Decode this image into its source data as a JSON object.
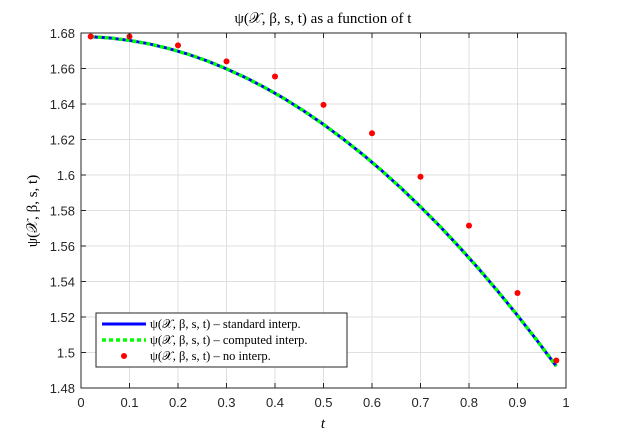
{
  "chart_data": {
    "type": "line",
    "title": "ψ(𝒳, β, s, t) as a function of t",
    "xlabel": "t",
    "ylabel": "ψ(𝒳, β, s, t)",
    "xlim": [
      0,
      1
    ],
    "ylim": [
      1.48,
      1.68
    ],
    "grid": true,
    "legend_position": "bottom-left",
    "x_ticks": [
      "0",
      "0.1",
      "0.2",
      "0.3",
      "0.4",
      "0.5",
      "0.6",
      "0.7",
      "0.8",
      "0.9",
      "1"
    ],
    "y_ticks": [
      "1.48",
      "1.5",
      "1.52",
      "1.54",
      "1.56",
      "1.58",
      "1.6",
      "1.62",
      "1.64",
      "1.66",
      "1.68"
    ],
    "series": [
      {
        "name": "ψ(𝒳, β, s, t) – standard interp.",
        "style": "solid-line",
        "color": "#0000ff",
        "x": [
          0.02,
          0.06,
          0.1,
          0.14,
          0.18,
          0.22,
          0.26,
          0.3,
          0.34,
          0.38,
          0.42,
          0.46,
          0.5,
          0.54,
          0.58,
          0.62,
          0.66,
          0.7,
          0.74,
          0.78,
          0.82,
          0.86,
          0.9,
          0.94,
          0.98
        ],
        "y": [
          1.6779,
          1.6772,
          1.6758,
          1.6739,
          1.6713,
          1.6681,
          1.6643,
          1.6598,
          1.6548,
          1.6491,
          1.6429,
          1.636,
          1.6285,
          1.6204,
          1.6118,
          1.6025,
          1.5926,
          1.5821,
          1.5711,
          1.5594,
          1.5472,
          1.5343,
          1.5209,
          1.5069,
          1.4923
        ]
      },
      {
        "name": "ψ(𝒳, β, s, t) – computed interp.",
        "style": "dotted-line",
        "color": "#00ff00",
        "x": [
          0.02,
          0.06,
          0.1,
          0.14,
          0.18,
          0.22,
          0.26,
          0.3,
          0.34,
          0.38,
          0.42,
          0.46,
          0.5,
          0.54,
          0.58,
          0.62,
          0.66,
          0.7,
          0.74,
          0.78,
          0.82,
          0.86,
          0.9,
          0.94,
          0.98
        ],
        "y": [
          1.6779,
          1.6772,
          1.6758,
          1.6739,
          1.6713,
          1.6681,
          1.6643,
          1.6598,
          1.6548,
          1.6491,
          1.6429,
          1.636,
          1.6285,
          1.6204,
          1.6118,
          1.6025,
          1.5926,
          1.5821,
          1.5711,
          1.5594,
          1.5472,
          1.5343,
          1.5209,
          1.5069,
          1.4923
        ]
      },
      {
        "name": "ψ(𝒳, β, s, t) – no interp.",
        "style": "markers",
        "color": "#ff0000",
        "x": [
          0.02,
          0.1,
          0.2,
          0.3,
          0.4,
          0.5,
          0.6,
          0.7,
          0.8,
          0.9,
          0.98
        ],
        "y": [
          1.678,
          1.678,
          1.673,
          1.664,
          1.6555,
          1.6395,
          1.6235,
          1.599,
          1.5715,
          1.5335,
          1.4955
        ]
      }
    ]
  }
}
